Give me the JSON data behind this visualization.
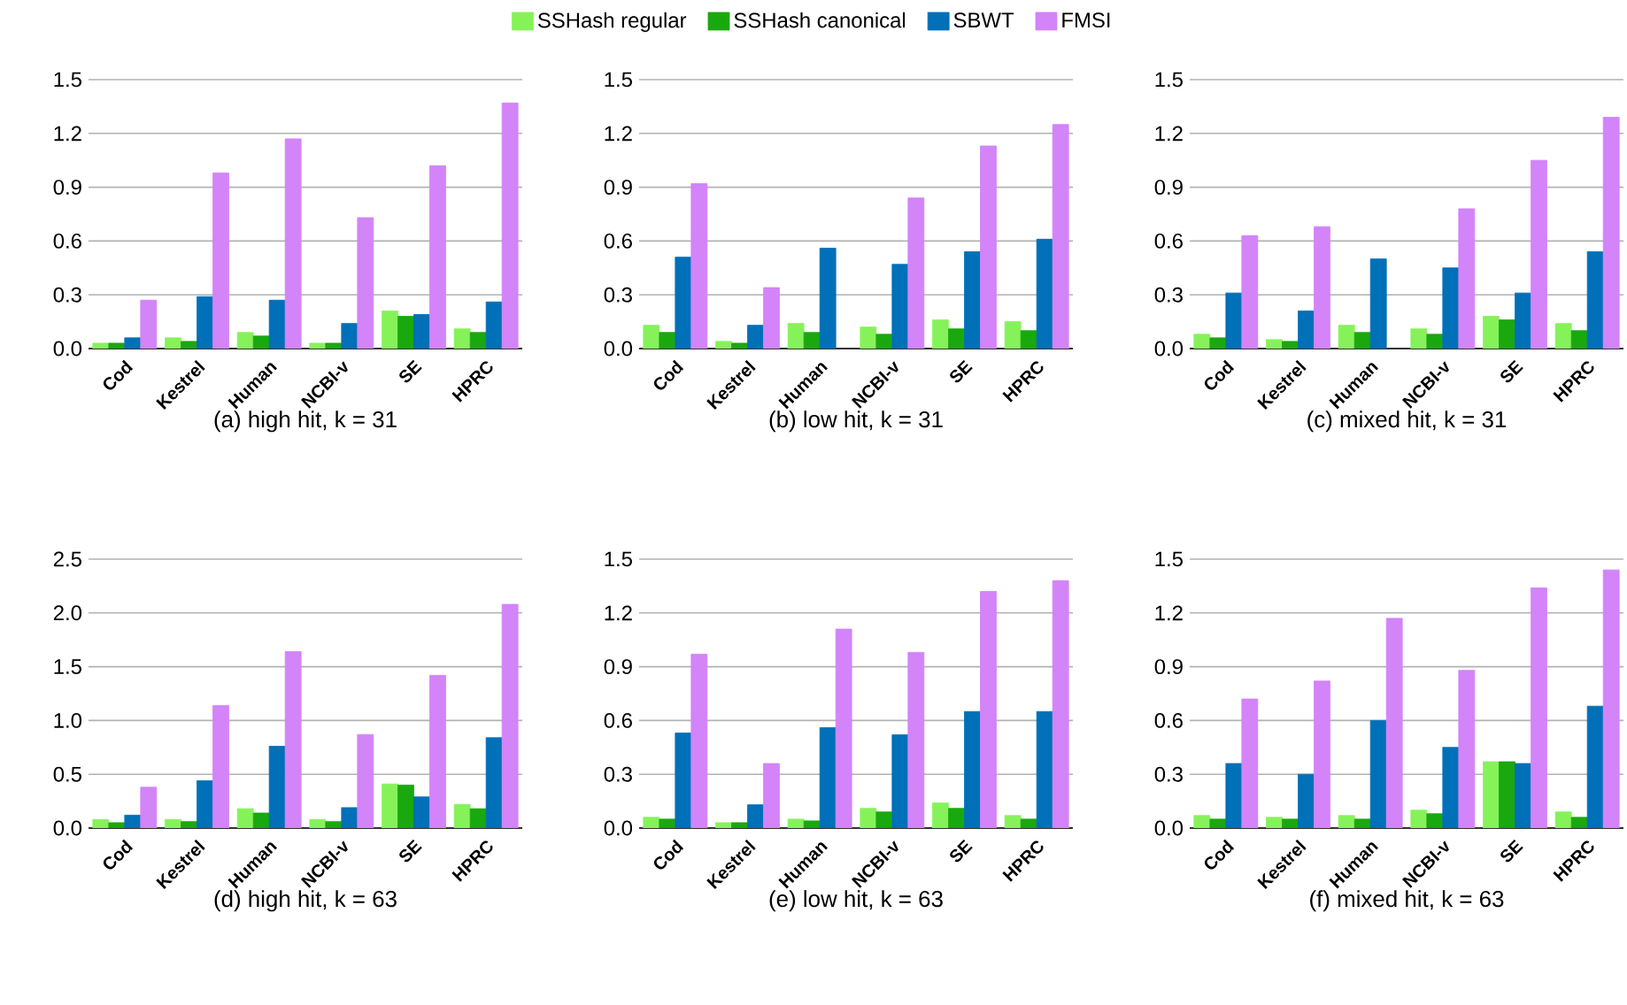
{
  "chart_data": [
    {
      "type": "bar",
      "title": "(a) high hit, k = 31",
      "categories": [
        "Cod",
        "Kestrel",
        "Human",
        "NCBI-v",
        "SE",
        "HPRC"
      ],
      "ylim": [
        0,
        1.5
      ],
      "yticks": [
        {
          "value": 0,
          "label": "0.0"
        },
        0.3,
        0.6,
        0.9,
        1.2,
        1.5
      ],
      "grid": "y",
      "legend": "top",
      "series": [
        {
          "name": "SSHash regular",
          "color": "#86f25a",
          "values": [
            0.03,
            0.06,
            0.09,
            0.03,
            0.21,
            0.11
          ]
        },
        {
          "name": "SSHash canonical",
          "color": "#1aa80f",
          "values": [
            0.03,
            0.04,
            0.07,
            0.03,
            0.18,
            0.09
          ]
        },
        {
          "name": "SBWT",
          "color": "#0070b8",
          "values": [
            0.06,
            0.29,
            0.27,
            0.14,
            0.19,
            0.26
          ]
        },
        {
          "name": "FMSI",
          "color": "#d384f8",
          "values": [
            0.27,
            0.98,
            1.17,
            0.73,
            1.02,
            1.37
          ]
        }
      ]
    },
    {
      "type": "bar",
      "title": "(b) low hit, k = 31",
      "categories": [
        "Cod",
        "Kestrel",
        "Human",
        "NCBI-v",
        "SE",
        "HPRC"
      ],
      "ylim": [
        0,
        1.5
      ],
      "yticks": [
        {
          "value": 0,
          "label": "0.0"
        },
        0.3,
        0.6,
        0.9,
        1.2,
        1.5
      ],
      "grid": "y",
      "series": [
        {
          "color": "#86f25a",
          "values": [
            0.13,
            0.04,
            0.14,
            0.12,
            0.16,
            0.15
          ]
        },
        {
          "color": "#1aa80f",
          "values": [
            0.09,
            0.03,
            0.09,
            0.08,
            0.11,
            0.1
          ]
        },
        {
          "color": "#0070b8",
          "values": [
            0.51,
            0.13,
            0.56,
            0.47,
            0.54,
            0.61
          ]
        },
        {
          "color": "#d384f8",
          "values": [
            0.92,
            0.34,
            null,
            0.84,
            1.13,
            1.25
          ]
        }
      ]
    },
    {
      "type": "bar",
      "title": "(c) mixed hit, k = 31",
      "categories": [
        "Cod",
        "Kestrel",
        "Human",
        "NCBI-v",
        "SE",
        "HPRC"
      ],
      "ylim": [
        0,
        1.5
      ],
      "yticks": [
        {
          "value": 0,
          "label": "0.0"
        },
        0.3,
        0.6,
        0.9,
        1.2,
        1.5
      ],
      "grid": "y",
      "series": [
        {
          "color": "#86f25a",
          "values": [
            0.08,
            0.05,
            0.13,
            0.11,
            0.18,
            0.14
          ]
        },
        {
          "color": "#1aa80f",
          "values": [
            0.06,
            0.04,
            0.09,
            0.08,
            0.16,
            0.1
          ]
        },
        {
          "color": "#0070b8",
          "values": [
            0.31,
            0.21,
            0.5,
            0.45,
            0.31,
            0.54
          ]
        },
        {
          "color": "#d384f8",
          "values": [
            0.63,
            0.68,
            null,
            0.78,
            1.05,
            1.29
          ]
        }
      ]
    },
    {
      "type": "bar",
      "title": "(d) high hit, k = 63",
      "categories": [
        "Cod",
        "Kestrel",
        "Human",
        "NCBI-v",
        "SE",
        "HPRC"
      ],
      "ylim": [
        0,
        2.5
      ],
      "yticks": [
        {
          "value": 0,
          "label": "0.0"
        },
        0.5,
        {
          "value": 1,
          "label": "1.0"
        },
        1.5,
        {
          "value": 2,
          "label": "2.0"
        },
        2.5
      ],
      "grid": "y",
      "series": [
        {
          "color": "#86f25a",
          "values": [
            0.08,
            0.08,
            0.18,
            0.08,
            0.41,
            0.22
          ]
        },
        {
          "color": "#1aa80f",
          "values": [
            0.05,
            0.06,
            0.14,
            0.06,
            0.4,
            0.18
          ]
        },
        {
          "color": "#0070b8",
          "values": [
            0.12,
            0.44,
            0.76,
            0.19,
            0.29,
            0.84
          ]
        },
        {
          "color": "#d384f8",
          "values": [
            0.38,
            1.14,
            1.64,
            0.87,
            1.42,
            2.08
          ]
        }
      ]
    },
    {
      "type": "bar",
      "title": "(e) low hit, k = 63",
      "categories": [
        "Cod",
        "Kestrel",
        "Human",
        "NCBI-v",
        "SE",
        "HPRC"
      ],
      "ylim": [
        0,
        1.5
      ],
      "yticks": [
        {
          "value": 0,
          "label": "0.0"
        },
        0.3,
        0.6,
        0.9,
        1.2,
        1.5
      ],
      "grid": "y",
      "series": [
        {
          "color": "#86f25a",
          "values": [
            0.06,
            0.03,
            0.05,
            0.11,
            0.14,
            0.07
          ]
        },
        {
          "color": "#1aa80f",
          "values": [
            0.05,
            0.03,
            0.04,
            0.09,
            0.11,
            0.05
          ]
        },
        {
          "color": "#0070b8",
          "values": [
            0.53,
            0.13,
            0.56,
            0.52,
            0.65,
            0.65
          ]
        },
        {
          "color": "#d384f8",
          "values": [
            0.97,
            0.36,
            1.11,
            0.98,
            1.32,
            1.38
          ]
        }
      ]
    },
    {
      "type": "bar",
      "title": "(f) mixed hit, k = 63",
      "categories": [
        "Cod",
        "Kestrel",
        "Human",
        "NCBI-v",
        "SE",
        "HPRC"
      ],
      "ylim": [
        0,
        1.5
      ],
      "yticks": [
        {
          "value": 0,
          "label": "0.0"
        },
        0.3,
        0.6,
        0.9,
        1.2,
        1.5
      ],
      "grid": "y",
      "series": [
        {
          "color": "#86f25a",
          "values": [
            0.07,
            0.06,
            0.07,
            0.1,
            0.37,
            0.09
          ]
        },
        {
          "color": "#1aa80f",
          "values": [
            0.05,
            0.05,
            0.05,
            0.08,
            0.37,
            0.06
          ]
        },
        {
          "color": "#0070b8",
          "values": [
            0.36,
            0.3,
            0.6,
            0.45,
            0.36,
            0.68
          ]
        },
        {
          "color": "#d384f8",
          "values": [
            0.72,
            0.82,
            1.17,
            0.88,
            1.34,
            1.44
          ]
        }
      ]
    }
  ]
}
